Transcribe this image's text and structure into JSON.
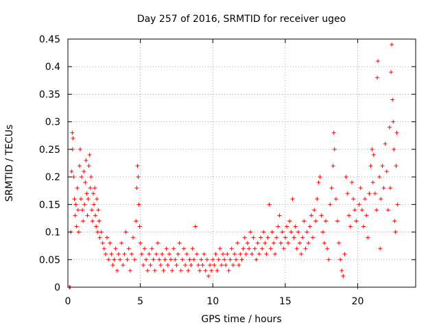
{
  "chart_data": {
    "type": "scatter",
    "title": "Day 257 of 2016, SRMTID for receiver ugeo",
    "xlabel": "GPS time / hours",
    "ylabel": "SRMTID / TECUs",
    "xlim": [
      0,
      24
    ],
    "ylim": [
      0,
      0.45
    ],
    "xticks": [
      0,
      5,
      10,
      15,
      20
    ],
    "xtick_labels": [
      "0",
      "5",
      "10",
      "15",
      "20"
    ],
    "yticks": [
      0,
      0.05,
      0.1,
      0.15,
      0.2,
      0.25,
      0.3,
      0.35,
      0.4,
      0.45
    ],
    "ytick_labels": [
      "0",
      "0.05",
      "0.1",
      "0.15",
      "0.2",
      "0.25",
      "0.3",
      "0.35",
      "0.4",
      "0.45"
    ],
    "grid": true,
    "marker": "+",
    "series": [
      {
        "name": "SRMTID",
        "color": "#ff0000",
        "points": [
          [
            0.1,
            0.0
          ],
          [
            0.15,
            0.0
          ],
          [
            0.2,
            0.1
          ],
          [
            0.25,
            0.21
          ],
          [
            0.3,
            0.28
          ],
          [
            0.32,
            0.25
          ],
          [
            0.35,
            0.27
          ],
          [
            0.4,
            0.2
          ],
          [
            0.45,
            0.16
          ],
          [
            0.5,
            0.13
          ],
          [
            0.55,
            0.15
          ],
          [
            0.6,
            0.11
          ],
          [
            0.65,
            0.18
          ],
          [
            0.7,
            0.14
          ],
          [
            0.75,
            0.1
          ],
          [
            0.8,
            0.22
          ],
          [
            0.85,
            0.25
          ],
          [
            0.9,
            0.16
          ],
          [
            0.95,
            0.2
          ],
          [
            1.0,
            0.14
          ],
          [
            1.05,
            0.12
          ],
          [
            1.1,
            0.21
          ],
          [
            1.15,
            0.15
          ],
          [
            1.2,
            0.19
          ],
          [
            1.25,
            0.23
          ],
          [
            1.3,
            0.17
          ],
          [
            1.35,
            0.13
          ],
          [
            1.4,
            0.16
          ],
          [
            1.45,
            0.22
          ],
          [
            1.5,
            0.24
          ],
          [
            1.55,
            0.18
          ],
          [
            1.6,
            0.2
          ],
          [
            1.65,
            0.14
          ],
          [
            1.7,
            0.12
          ],
          [
            1.75,
            0.17
          ],
          [
            1.8,
            0.15
          ],
          [
            1.85,
            0.18
          ],
          [
            1.9,
            0.13
          ],
          [
            1.95,
            0.11
          ],
          [
            2.0,
            0.16
          ],
          [
            2.05,
            0.1
          ],
          [
            2.1,
            0.14
          ],
          [
            2.15,
            0.12
          ],
          [
            2.2,
            0.09
          ],
          [
            2.3,
            0.1
          ],
          [
            2.4,
            0.08
          ],
          [
            2.5,
            0.07
          ],
          [
            2.6,
            0.06
          ],
          [
            2.7,
            0.09
          ],
          [
            2.8,
            0.05
          ],
          [
            2.9,
            0.08
          ],
          [
            3.0,
            0.06
          ],
          [
            3.1,
            0.04
          ],
          [
            3.2,
            0.05
          ],
          [
            3.3,
            0.07
          ],
          [
            3.4,
            0.03
          ],
          [
            3.5,
            0.06
          ],
          [
            3.6,
            0.05
          ],
          [
            3.7,
            0.08
          ],
          [
            3.8,
            0.04
          ],
          [
            3.9,
            0.06
          ],
          [
            4.0,
            0.1
          ],
          [
            4.1,
            0.05
          ],
          [
            4.2,
            0.07
          ],
          [
            4.3,
            0.03
          ],
          [
            4.4,
            0.06
          ],
          [
            4.5,
            0.09
          ],
          [
            4.6,
            0.05
          ],
          [
            4.7,
            0.12
          ],
          [
            4.75,
            0.18
          ],
          [
            4.8,
            0.22
          ],
          [
            4.85,
            0.2
          ],
          [
            4.9,
            0.15
          ],
          [
            4.95,
            0.11
          ],
          [
            5.0,
            0.08
          ],
          [
            5.1,
            0.06
          ],
          [
            5.2,
            0.04
          ],
          [
            5.3,
            0.07
          ],
          [
            5.4,
            0.05
          ],
          [
            5.5,
            0.03
          ],
          [
            5.6,
            0.06
          ],
          [
            5.7,
            0.04
          ],
          [
            5.8,
            0.07
          ],
          [
            5.9,
            0.05
          ],
          [
            6.0,
            0.03
          ],
          [
            6.1,
            0.06
          ],
          [
            6.2,
            0.08
          ],
          [
            6.3,
            0.05
          ],
          [
            6.4,
            0.04
          ],
          [
            6.5,
            0.06
          ],
          [
            6.6,
            0.03
          ],
          [
            6.7,
            0.05
          ],
          [
            6.8,
            0.07
          ],
          [
            6.9,
            0.04
          ],
          [
            7.0,
            0.06
          ],
          [
            7.1,
            0.05
          ],
          [
            7.2,
            0.03
          ],
          [
            7.3,
            0.07
          ],
          [
            7.4,
            0.05
          ],
          [
            7.5,
            0.04
          ],
          [
            7.6,
            0.06
          ],
          [
            7.7,
            0.08
          ],
          [
            7.8,
            0.03
          ],
          [
            7.9,
            0.05
          ],
          [
            8.0,
            0.07
          ],
          [
            8.1,
            0.04
          ],
          [
            8.2,
            0.06
          ],
          [
            8.3,
            0.03
          ],
          [
            8.4,
            0.05
          ],
          [
            8.5,
            0.04
          ],
          [
            8.6,
            0.07
          ],
          [
            8.7,
            0.05
          ],
          [
            8.8,
            0.11
          ],
          [
            8.9,
            0.06
          ],
          [
            9.0,
            0.04
          ],
          [
            9.1,
            0.03
          ],
          [
            9.2,
            0.05
          ],
          [
            9.3,
            0.04
          ],
          [
            9.4,
            0.06
          ],
          [
            9.5,
            0.03
          ],
          [
            9.6,
            0.05
          ],
          [
            9.7,
            0.02
          ],
          [
            9.8,
            0.04
          ],
          [
            9.9,
            0.03
          ],
          [
            10.0,
            0.05
          ],
          [
            10.1,
            0.04
          ],
          [
            10.2,
            0.06
          ],
          [
            10.3,
            0.03
          ],
          [
            10.4,
            0.05
          ],
          [
            10.5,
            0.07
          ],
          [
            10.6,
            0.04
          ],
          [
            10.7,
            0.06
          ],
          [
            10.8,
            0.05
          ],
          [
            10.9,
            0.04
          ],
          [
            11.0,
            0.06
          ],
          [
            11.1,
            0.03
          ],
          [
            11.2,
            0.05
          ],
          [
            11.3,
            0.07
          ],
          [
            11.4,
            0.04
          ],
          [
            11.5,
            0.06
          ],
          [
            11.6,
            0.05
          ],
          [
            11.7,
            0.08
          ],
          [
            11.8,
            0.04
          ],
          [
            11.9,
            0.06
          ],
          [
            12.0,
            0.05
          ],
          [
            12.1,
            0.07
          ],
          [
            12.2,
            0.09
          ],
          [
            12.3,
            0.06
          ],
          [
            12.4,
            0.08
          ],
          [
            12.5,
            0.07
          ],
          [
            12.6,
            0.1
          ],
          [
            12.7,
            0.06
          ],
          [
            12.8,
            0.09
          ],
          [
            12.9,
            0.07
          ],
          [
            13.0,
            0.05
          ],
          [
            13.1,
            0.08
          ],
          [
            13.2,
            0.06
          ],
          [
            13.3,
            0.09
          ],
          [
            13.4,
            0.07
          ],
          [
            13.5,
            0.1
          ],
          [
            13.6,
            0.08
          ],
          [
            13.7,
            0.06
          ],
          [
            13.8,
            0.09
          ],
          [
            13.9,
            0.15
          ],
          [
            14.0,
            0.07
          ],
          [
            14.1,
            0.1
          ],
          [
            14.2,
            0.08
          ],
          [
            14.3,
            0.06
          ],
          [
            14.4,
            0.09
          ],
          [
            14.5,
            0.11
          ],
          [
            14.6,
            0.13
          ],
          [
            14.7,
            0.08
          ],
          [
            14.8,
            0.1
          ],
          [
            14.9,
            0.07
          ],
          [
            15.0,
            0.09
          ],
          [
            15.1,
            0.11
          ],
          [
            15.2,
            0.08
          ],
          [
            15.3,
            0.12
          ],
          [
            15.4,
            0.1
          ],
          [
            15.5,
            0.16
          ],
          [
            15.6,
            0.09
          ],
          [
            15.7,
            0.11
          ],
          [
            15.8,
            0.07
          ],
          [
            15.9,
            0.1
          ],
          [
            16.0,
            0.08
          ],
          [
            16.1,
            0.06
          ],
          [
            16.2,
            0.09
          ],
          [
            16.3,
            0.12
          ],
          [
            16.4,
            0.07
          ],
          [
            16.5,
            0.1
          ],
          [
            16.6,
            0.08
          ],
          [
            16.7,
            0.11
          ],
          [
            16.8,
            0.13
          ],
          [
            16.9,
            0.09
          ],
          [
            17.0,
            0.14
          ],
          [
            17.1,
            0.12
          ],
          [
            17.2,
            0.16
          ],
          [
            17.3,
            0.19
          ],
          [
            17.4,
            0.2
          ],
          [
            17.5,
            0.13
          ],
          [
            17.6,
            0.1
          ],
          [
            17.7,
            0.08
          ],
          [
            17.8,
            0.12
          ],
          [
            17.9,
            0.07
          ],
          [
            18.0,
            0.05
          ],
          [
            18.1,
            0.15
          ],
          [
            18.2,
            0.18
          ],
          [
            18.3,
            0.22
          ],
          [
            18.35,
            0.28
          ],
          [
            18.4,
            0.25
          ],
          [
            18.5,
            0.16
          ],
          [
            18.6,
            0.12
          ],
          [
            18.7,
            0.08
          ],
          [
            18.8,
            0.05
          ],
          [
            18.9,
            0.03
          ],
          [
            19.0,
            0.02
          ],
          [
            19.1,
            0.06
          ],
          [
            19.2,
            0.2
          ],
          [
            19.3,
            0.17
          ],
          [
            19.4,
            0.13
          ],
          [
            19.5,
            0.11
          ],
          [
            19.6,
            0.19
          ],
          [
            19.7,
            0.16
          ],
          [
            19.8,
            0.14
          ],
          [
            19.9,
            0.12
          ],
          [
            20.0,
            0.0
          ],
          [
            20.1,
            0.15
          ],
          [
            20.2,
            0.18
          ],
          [
            20.3,
            0.14
          ],
          [
            20.4,
            0.11
          ],
          [
            20.5,
            0.16
          ],
          [
            20.6,
            0.13
          ],
          [
            20.7,
            0.09
          ],
          [
            20.8,
            0.17
          ],
          [
            20.9,
            0.22
          ],
          [
            21.0,
            0.25
          ],
          [
            21.05,
            0.19
          ],
          [
            21.1,
            0.24
          ],
          [
            21.2,
            0.17
          ],
          [
            21.3,
            0.14
          ],
          [
            21.35,
            0.38
          ],
          [
            21.4,
            0.41
          ],
          [
            21.5,
            0.2
          ],
          [
            21.55,
            0.07
          ],
          [
            21.6,
            0.16
          ],
          [
            21.7,
            0.22
          ],
          [
            21.8,
            0.18
          ],
          [
            21.9,
            0.26
          ],
          [
            22.0,
            0.21
          ],
          [
            22.1,
            0.14
          ],
          [
            22.2,
            0.29
          ],
          [
            22.25,
            0.18
          ],
          [
            22.3,
            0.39
          ],
          [
            22.35,
            0.44
          ],
          [
            22.4,
            0.34
          ],
          [
            22.45,
            0.3
          ],
          [
            22.5,
            0.25
          ],
          [
            22.55,
            0.12
          ],
          [
            22.6,
            0.1
          ],
          [
            22.65,
            0.22
          ],
          [
            22.7,
            0.28
          ],
          [
            22.75,
            0.15
          ]
        ]
      }
    ]
  }
}
